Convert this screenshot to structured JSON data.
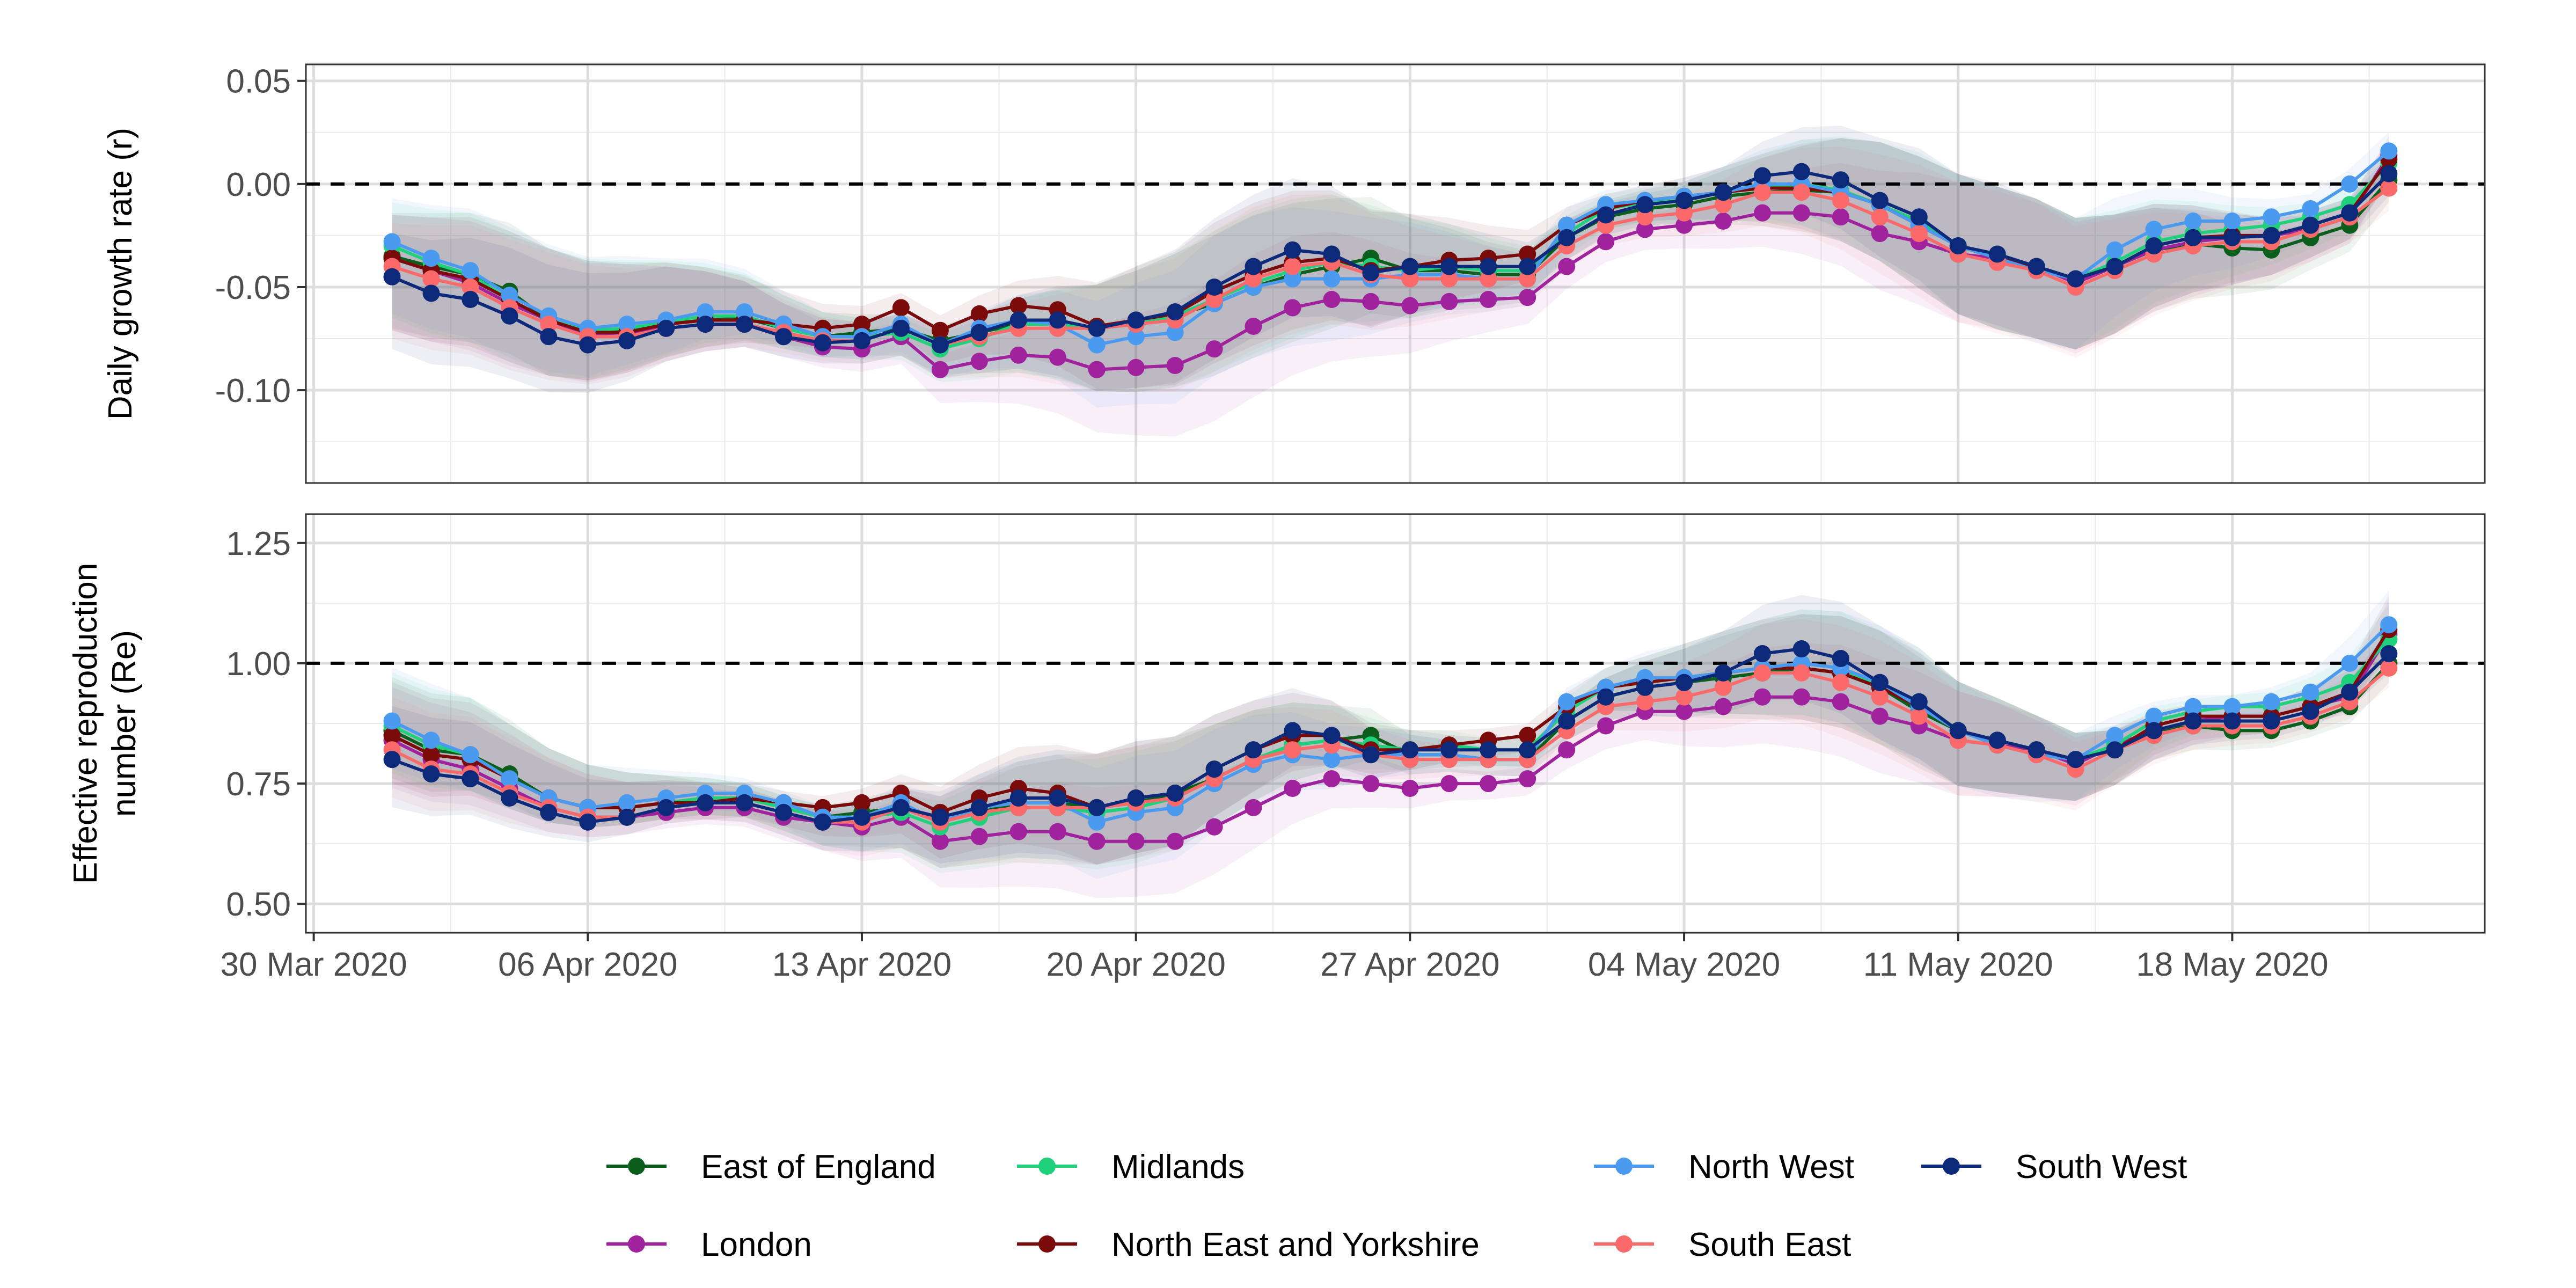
{
  "chart_data": [
    {
      "type": "line",
      "ylabel": "Daily growth rate (r)",
      "ylim": [
        -0.145,
        0.058
      ],
      "yticks": [
        0.05,
        0.0,
        -0.05,
        -0.1
      ],
      "ytick_labels": [
        "0.05",
        "0.00",
        "-0.05",
        "-0.10"
      ],
      "reference_line": 0.0,
      "grid": true,
      "series": [
        {
          "name": "East of England",
          "values": [
            -0.035,
            -0.04,
            -0.044,
            -0.052,
            -0.066,
            -0.072,
            -0.071,
            -0.068,
            -0.066,
            -0.065,
            -0.07,
            -0.074,
            -0.072,
            -0.07,
            -0.076,
            -0.072,
            -0.068,
            -0.067,
            -0.07,
            -0.068,
            -0.064,
            -0.058,
            -0.05,
            -0.044,
            -0.04,
            -0.036,
            -0.042,
            -0.042,
            -0.044,
            -0.044,
            -0.026,
            -0.016,
            -0.012,
            -0.01,
            -0.006,
            -0.004,
            -0.003,
            -0.004,
            -0.01,
            -0.02,
            -0.03,
            -0.036,
            -0.04,
            -0.046,
            -0.04,
            -0.032,
            -0.029,
            -0.031,
            -0.032,
            -0.026,
            -0.02,
            0.002
          ]
        },
        {
          "name": "London",
          "values": [
            -0.036,
            -0.042,
            -0.048,
            -0.058,
            -0.066,
            -0.073,
            -0.072,
            -0.07,
            -0.068,
            -0.068,
            -0.074,
            -0.079,
            -0.08,
            -0.074,
            -0.09,
            -0.086,
            -0.083,
            -0.084,
            -0.09,
            -0.089,
            -0.088,
            -0.08,
            -0.069,
            -0.06,
            -0.056,
            -0.057,
            -0.059,
            -0.057,
            -0.056,
            -0.055,
            -0.04,
            -0.028,
            -0.022,
            -0.02,
            -0.018,
            -0.014,
            -0.014,
            -0.016,
            -0.024,
            -0.028,
            -0.034,
            -0.036,
            -0.04,
            -0.048,
            -0.04,
            -0.032,
            -0.028,
            -0.026,
            -0.025,
            -0.022,
            -0.016,
            0.014
          ]
        },
        {
          "name": "Midlands",
          "values": [
            -0.03,
            -0.038,
            -0.044,
            -0.056,
            -0.066,
            -0.071,
            -0.07,
            -0.067,
            -0.064,
            -0.064,
            -0.07,
            -0.074,
            -0.074,
            -0.072,
            -0.08,
            -0.075,
            -0.068,
            -0.068,
            -0.07,
            -0.068,
            -0.064,
            -0.056,
            -0.048,
            -0.042,
            -0.038,
            -0.04,
            -0.042,
            -0.04,
            -0.042,
            -0.042,
            -0.024,
            -0.012,
            -0.009,
            -0.008,
            -0.004,
            -0.002,
            0.0,
            -0.003,
            -0.01,
            -0.018,
            -0.03,
            -0.036,
            -0.04,
            -0.046,
            -0.038,
            -0.028,
            -0.024,
            -0.022,
            -0.02,
            -0.016,
            -0.01,
            0.01
          ]
        },
        {
          "name": "North East and Yorkshire",
          "values": [
            -0.036,
            -0.042,
            -0.046,
            -0.056,
            -0.066,
            -0.072,
            -0.072,
            -0.068,
            -0.066,
            -0.066,
            -0.068,
            -0.07,
            -0.068,
            -0.06,
            -0.071,
            -0.063,
            -0.059,
            -0.061,
            -0.069,
            -0.066,
            -0.063,
            -0.052,
            -0.044,
            -0.038,
            -0.036,
            -0.042,
            -0.04,
            -0.037,
            -0.036,
            -0.034,
            -0.02,
            -0.012,
            -0.008,
            -0.006,
            -0.004,
            -0.002,
            -0.002,
            -0.004,
            -0.01,
            -0.02,
            -0.03,
            -0.036,
            -0.04,
            -0.046,
            -0.04,
            -0.03,
            -0.026,
            -0.025,
            -0.025,
            -0.02,
            -0.014,
            0.012
          ]
        },
        {
          "name": "North West",
          "values": [
            -0.028,
            -0.036,
            -0.042,
            -0.054,
            -0.064,
            -0.07,
            -0.068,
            -0.066,
            -0.062,
            -0.062,
            -0.068,
            -0.074,
            -0.074,
            -0.068,
            -0.078,
            -0.07,
            -0.066,
            -0.068,
            -0.078,
            -0.074,
            -0.072,
            -0.058,
            -0.05,
            -0.046,
            -0.046,
            -0.046,
            -0.044,
            -0.044,
            -0.046,
            -0.046,
            -0.02,
            -0.01,
            -0.008,
            -0.006,
            -0.004,
            0.0,
            0.0,
            -0.004,
            -0.01,
            -0.02,
            -0.03,
            -0.036,
            -0.042,
            -0.046,
            -0.032,
            -0.022,
            -0.018,
            -0.018,
            -0.016,
            -0.012,
            0.0,
            0.016
          ]
        },
        {
          "name": "South East",
          "values": [
            -0.04,
            -0.046,
            -0.05,
            -0.06,
            -0.068,
            -0.074,
            -0.074,
            -0.07,
            -0.068,
            -0.068,
            -0.072,
            -0.076,
            -0.076,
            -0.07,
            -0.078,
            -0.074,
            -0.07,
            -0.07,
            -0.07,
            -0.068,
            -0.066,
            -0.056,
            -0.046,
            -0.04,
            -0.038,
            -0.044,
            -0.046,
            -0.046,
            -0.046,
            -0.046,
            -0.03,
            -0.02,
            -0.016,
            -0.014,
            -0.01,
            -0.004,
            -0.004,
            -0.008,
            -0.016,
            -0.024,
            -0.034,
            -0.038,
            -0.042,
            -0.05,
            -0.042,
            -0.034,
            -0.03,
            -0.028,
            -0.028,
            -0.022,
            -0.016,
            -0.002
          ]
        },
        {
          "name": "South West",
          "values": [
            -0.045,
            -0.053,
            -0.056,
            -0.064,
            -0.074,
            -0.078,
            -0.076,
            -0.07,
            -0.068,
            -0.068,
            -0.074,
            -0.077,
            -0.076,
            -0.07,
            -0.078,
            -0.072,
            -0.066,
            -0.066,
            -0.07,
            -0.066,
            -0.062,
            -0.05,
            -0.04,
            -0.032,
            -0.034,
            -0.043,
            -0.04,
            -0.04,
            -0.04,
            -0.04,
            -0.026,
            -0.015,
            -0.01,
            -0.008,
            -0.004,
            0.004,
            0.006,
            0.002,
            -0.008,
            -0.016,
            -0.03,
            -0.034,
            -0.04,
            -0.046,
            -0.04,
            -0.03,
            -0.026,
            -0.026,
            -0.025,
            -0.02,
            -0.014,
            0.005
          ]
        }
      ]
    },
    {
      "type": "line",
      "ylabel": "Effective reproduction\nnumber (Re)",
      "ylim": [
        0.44,
        1.31
      ],
      "yticks": [
        1.25,
        1.0,
        0.75,
        0.5
      ],
      "ytick_labels": [
        "1.25",
        "1.00",
        "0.75",
        "0.50"
      ],
      "reference_line": 1.0,
      "grid": true,
      "series": [
        {
          "name": "East of England",
          "values": [
            0.86,
            0.82,
            0.81,
            0.77,
            0.72,
            0.7,
            0.7,
            0.71,
            0.72,
            0.72,
            0.7,
            0.68,
            0.69,
            0.7,
            0.67,
            0.69,
            0.71,
            0.71,
            0.7,
            0.71,
            0.73,
            0.76,
            0.8,
            0.83,
            0.84,
            0.85,
            0.81,
            0.81,
            0.8,
            0.8,
            0.88,
            0.93,
            0.95,
            0.96,
            0.97,
            0.98,
            0.99,
            0.98,
            0.95,
            0.9,
            0.86,
            0.84,
            0.82,
            0.8,
            0.82,
            0.86,
            0.87,
            0.86,
            0.86,
            0.88,
            0.91,
            1.0
          ]
        },
        {
          "name": "London",
          "values": [
            0.84,
            0.8,
            0.78,
            0.74,
            0.7,
            0.68,
            0.68,
            0.69,
            0.7,
            0.7,
            0.68,
            0.67,
            0.66,
            0.68,
            0.63,
            0.64,
            0.65,
            0.65,
            0.63,
            0.63,
            0.63,
            0.66,
            0.7,
            0.74,
            0.76,
            0.75,
            0.74,
            0.75,
            0.75,
            0.76,
            0.82,
            0.87,
            0.9,
            0.9,
            0.91,
            0.93,
            0.93,
            0.92,
            0.89,
            0.87,
            0.84,
            0.83,
            0.82,
            0.79,
            0.83,
            0.86,
            0.88,
            0.89,
            0.89,
            0.91,
            0.93,
            1.06
          ]
        },
        {
          "name": "Midlands",
          "values": [
            0.87,
            0.83,
            0.81,
            0.76,
            0.72,
            0.7,
            0.7,
            0.71,
            0.72,
            0.72,
            0.7,
            0.68,
            0.68,
            0.69,
            0.66,
            0.68,
            0.7,
            0.7,
            0.69,
            0.7,
            0.72,
            0.76,
            0.8,
            0.83,
            0.84,
            0.83,
            0.82,
            0.83,
            0.82,
            0.82,
            0.9,
            0.95,
            0.96,
            0.97,
            0.98,
            0.99,
            1.0,
            0.99,
            0.95,
            0.92,
            0.86,
            0.84,
            0.82,
            0.8,
            0.83,
            0.88,
            0.9,
            0.91,
            0.91,
            0.93,
            0.96,
            1.05
          ]
        },
        {
          "name": "North East and Yorkshire",
          "values": [
            0.85,
            0.81,
            0.8,
            0.76,
            0.72,
            0.7,
            0.7,
            0.71,
            0.71,
            0.72,
            0.71,
            0.7,
            0.71,
            0.73,
            0.69,
            0.72,
            0.74,
            0.73,
            0.7,
            0.72,
            0.73,
            0.78,
            0.82,
            0.85,
            0.85,
            0.82,
            0.82,
            0.83,
            0.84,
            0.85,
            0.91,
            0.95,
            0.96,
            0.97,
            0.98,
            0.99,
            0.99,
            0.98,
            0.95,
            0.91,
            0.86,
            0.84,
            0.82,
            0.8,
            0.82,
            0.87,
            0.89,
            0.89,
            0.89,
            0.91,
            0.94,
            1.07
          ]
        },
        {
          "name": "North West",
          "values": [
            0.88,
            0.84,
            0.81,
            0.76,
            0.72,
            0.7,
            0.71,
            0.72,
            0.73,
            0.73,
            0.71,
            0.68,
            0.68,
            0.71,
            0.67,
            0.7,
            0.71,
            0.71,
            0.67,
            0.69,
            0.7,
            0.75,
            0.79,
            0.81,
            0.8,
            0.81,
            0.81,
            0.81,
            0.8,
            0.8,
            0.92,
            0.95,
            0.97,
            0.97,
            0.98,
            0.99,
            1.0,
            0.99,
            0.96,
            0.91,
            0.86,
            0.83,
            0.81,
            0.8,
            0.85,
            0.89,
            0.91,
            0.91,
            0.92,
            0.94,
            1.0,
            1.08
          ]
        },
        {
          "name": "South East",
          "values": [
            0.82,
            0.78,
            0.77,
            0.73,
            0.7,
            0.68,
            0.68,
            0.7,
            0.71,
            0.71,
            0.69,
            0.67,
            0.67,
            0.7,
            0.67,
            0.69,
            0.7,
            0.7,
            0.7,
            0.71,
            0.72,
            0.76,
            0.8,
            0.82,
            0.83,
            0.81,
            0.8,
            0.8,
            0.8,
            0.8,
            0.86,
            0.91,
            0.92,
            0.93,
            0.95,
            0.98,
            0.98,
            0.96,
            0.93,
            0.89,
            0.84,
            0.83,
            0.81,
            0.78,
            0.82,
            0.85,
            0.87,
            0.87,
            0.87,
            0.89,
            0.92,
            0.99
          ]
        },
        {
          "name": "South West",
          "values": [
            0.8,
            0.77,
            0.76,
            0.72,
            0.69,
            0.67,
            0.68,
            0.7,
            0.71,
            0.71,
            0.69,
            0.67,
            0.68,
            0.7,
            0.68,
            0.7,
            0.72,
            0.72,
            0.7,
            0.72,
            0.73,
            0.78,
            0.82,
            0.86,
            0.85,
            0.81,
            0.82,
            0.82,
            0.82,
            0.82,
            0.88,
            0.93,
            0.95,
            0.96,
            0.98,
            1.02,
            1.03,
            1.01,
            0.96,
            0.92,
            0.86,
            0.84,
            0.82,
            0.8,
            0.82,
            0.86,
            0.88,
            0.88,
            0.88,
            0.9,
            0.94,
            1.02
          ]
        }
      ]
    }
  ],
  "shared_x": {
    "start": "2020-04-01",
    "end": "2020-05-22",
    "tick_labels": [
      "30 Mar 2020",
      "06 Apr 2020",
      "13 Apr 2020",
      "20 Apr 2020",
      "27 Apr 2020",
      "04 May 2020",
      "11 May 2020",
      "18 May 2020"
    ]
  },
  "legend": {
    "position": "bottom",
    "entries": [
      {
        "name": "East of England",
        "color": "#0b5e1b"
      },
      {
        "name": "Midlands",
        "color": "#1fd17a"
      },
      {
        "name": "North West",
        "color": "#4a9af0"
      },
      {
        "name": "South West",
        "color": "#0d2a7a"
      },
      {
        "name": "London",
        "color": "#a0229d"
      },
      {
        "name": "North East and Yorkshire",
        "color": "#7b0a0a"
      },
      {
        "name": "South East",
        "color": "#fa6a6a"
      }
    ]
  },
  "colors": {
    "East of England": "#0b5e1b",
    "London": "#a0229d",
    "Midlands": "#1fd17a",
    "North East and Yorkshire": "#7b0a0a",
    "North West": "#4a9af0",
    "South East": "#fa6a6a",
    "South West": "#0d2a7a"
  }
}
